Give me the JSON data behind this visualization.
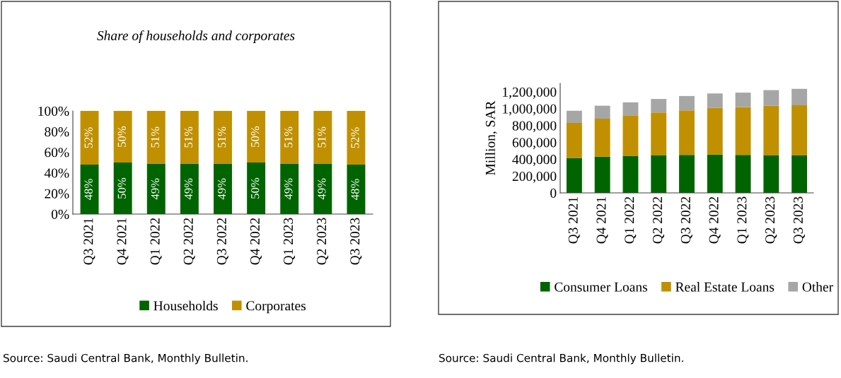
{
  "chart_data": [
    {
      "type": "bar",
      "title": "Share of households and corporates",
      "stacked": true,
      "legend": "bottom",
      "grid": false,
      "categories": [
        "Q3 2021",
        "Q4 2021",
        "Q1 2022",
        "Q2 2022",
        "Q3 2022",
        "Q4 2022",
        "Q1 2023",
        "Q2 2023",
        "Q3 2023"
      ],
      "series": [
        {
          "name": "Households",
          "color": "#006400",
          "values": [
            48,
            50,
            49,
            49,
            49,
            50,
            49,
            49,
            48
          ],
          "value_labels": [
            "48%",
            "50%",
            "49%",
            "49%",
            "49%",
            "50%",
            "49%",
            "49%",
            "48%"
          ]
        },
        {
          "name": "Corporates",
          "color": "#c09000",
          "values": [
            52,
            50,
            51,
            51,
            51,
            50,
            51,
            51,
            52
          ],
          "value_labels": [
            "52%",
            "50%",
            "51%",
            "51%",
            "51%",
            "50%",
            "51%",
            "51%",
            "52%"
          ]
        }
      ],
      "ylim": [
        0,
        100
      ],
      "yticks": [
        {
          "value": 0,
          "label": "0%"
        },
        {
          "value": 20,
          "label": "20%"
        },
        {
          "value": 40,
          "label": "40%"
        },
        {
          "value": 60,
          "label": "60%"
        },
        {
          "value": 80,
          "label": "80%"
        },
        {
          "value": 100,
          "label": "100%"
        }
      ],
      "annotations": [
        "Source: Saudi Central Bank, Monthly Bulletin."
      ]
    },
    {
      "type": "bar",
      "ylabel": "Million, SAR",
      "stacked": true,
      "legend": "bottom",
      "grid": false,
      "categories": [
        "Q3 2021",
        "Q4 2021",
        "Q1 2022",
        "Q2 2022",
        "Q3 2022",
        "Q4 2022",
        "Q1 2023",
        "Q2 2023",
        "Q3 2023"
      ],
      "series": [
        {
          "name": "Consumer Loans",
          "color": "#006400",
          "values": [
            415000,
            430000,
            440000,
            445000,
            450000,
            455000,
            450000,
            445000,
            445000
          ]
        },
        {
          "name": "Real Estate Loans",
          "color": "#c09000",
          "values": [
            415000,
            450000,
            480000,
            510000,
            530000,
            555000,
            570000,
            590000,
            595000
          ]
        },
        {
          "name": "Other",
          "color": "#a6a6a6",
          "values": [
            145000,
            155000,
            155000,
            160000,
            170000,
            170000,
            170000,
            185000,
            195000
          ]
        }
      ],
      "ylim": [
        0,
        1300000
      ],
      "yticks": [
        {
          "value": 0,
          "label": "0"
        },
        {
          "value": 200000,
          "label": "200,000"
        },
        {
          "value": 400000,
          "label": "400,000"
        },
        {
          "value": 600000,
          "label": "600,000"
        },
        {
          "value": 800000,
          "label": "800,000"
        },
        {
          "value": 1000000,
          "label": "1,000,000"
        },
        {
          "value": 1200000,
          "label": "1,200,000"
        }
      ],
      "annotations": [
        "Source: Saudi Central Bank, Monthly Bulletin."
      ]
    }
  ]
}
